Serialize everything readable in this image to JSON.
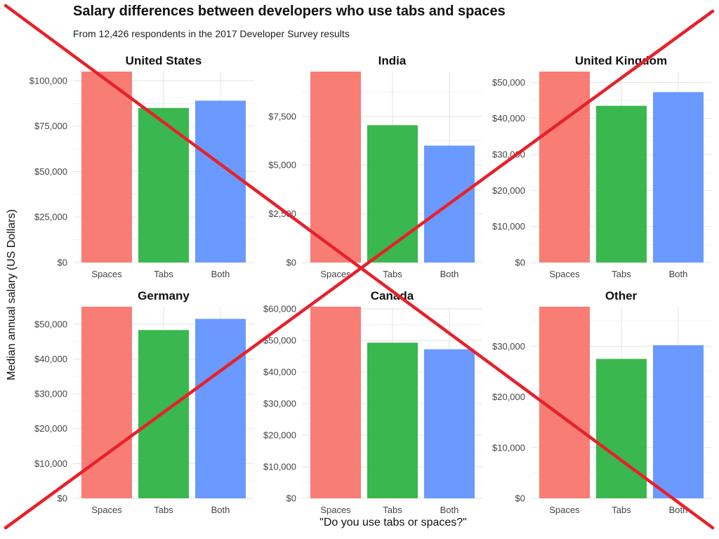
{
  "title": "Salary differences between developers who use tabs and spaces",
  "subtitle": "From 12,426 respondents in the 2017 Developer Survey results",
  "ylabel": "Median annual salary (US Dollars)",
  "xlabel": "\"Do you use tabs or spaces?\"",
  "colors": {
    "Spaces": "#f8766d",
    "Tabs": "#2fb344",
    "Both": "#6293ff",
    "cross": "#e8202a"
  },
  "chart_data": [
    {
      "type": "bar",
      "panel": "United States",
      "categories": [
        "Spaces",
        "Tabs",
        "Both"
      ],
      "values": [
        105000,
        85000,
        89000
      ],
      "ylim": [
        0,
        105000
      ],
      "yticks": [
        0,
        25000,
        50000,
        75000,
        100000
      ],
      "yticklabels": [
        "$0",
        "$25,000",
        "$50,000",
        "$75,000",
        "$100,000"
      ]
    },
    {
      "type": "bar",
      "panel": "India",
      "categories": [
        "Spaces",
        "Tabs",
        "Both"
      ],
      "values": [
        9800,
        7050,
        6000
      ],
      "ylim": [
        0,
        9800
      ],
      "yticks": [
        0,
        2500,
        5000,
        7500
      ],
      "yticklabels": [
        "$0",
        "$2,500",
        "$5,000",
        "$7,500"
      ]
    },
    {
      "type": "bar",
      "panel": "United Kingdom",
      "categories": [
        "Spaces",
        "Tabs",
        "Both"
      ],
      "values": [
        53000,
        43500,
        47300
      ],
      "ylim": [
        0,
        53000
      ],
      "yticks": [
        0,
        10000,
        20000,
        30000,
        40000,
        50000
      ],
      "yticklabels": [
        "$0",
        "$10,000",
        "$20,000",
        "$30,000",
        "$40,000",
        "$50,000"
      ]
    },
    {
      "type": "bar",
      "panel": "Germany",
      "categories": [
        "Spaces",
        "Tabs",
        "Both"
      ],
      "values": [
        55000,
        48300,
        51500
      ],
      "ylim": [
        0,
        55000
      ],
      "yticks": [
        0,
        10000,
        20000,
        30000,
        40000,
        50000
      ],
      "yticklabels": [
        "$0",
        "$10,000",
        "$20,000",
        "$30,000",
        "$40,000",
        "$50,000"
      ]
    },
    {
      "type": "bar",
      "panel": "Canada",
      "categories": [
        "Spaces",
        "Tabs",
        "Both"
      ],
      "values": [
        60700,
        49300,
        47200
      ],
      "ylim": [
        0,
        60700
      ],
      "yticks": [
        0,
        10000,
        20000,
        30000,
        40000,
        50000,
        60000
      ],
      "yticklabels": [
        "$0",
        "$10,000",
        "$20,000",
        "$30,000",
        "$40,000",
        "$50,000",
        "$60,000"
      ]
    },
    {
      "type": "bar",
      "panel": "Other",
      "categories": [
        "Spaces",
        "Tabs",
        "Both"
      ],
      "values": [
        37800,
        27500,
        30200
      ],
      "ylim": [
        0,
        37800
      ],
      "yticks": [
        0,
        10000,
        20000,
        30000
      ],
      "yticklabels": [
        "$0",
        "$10,000",
        "$20,000",
        "$30,000"
      ]
    }
  ]
}
